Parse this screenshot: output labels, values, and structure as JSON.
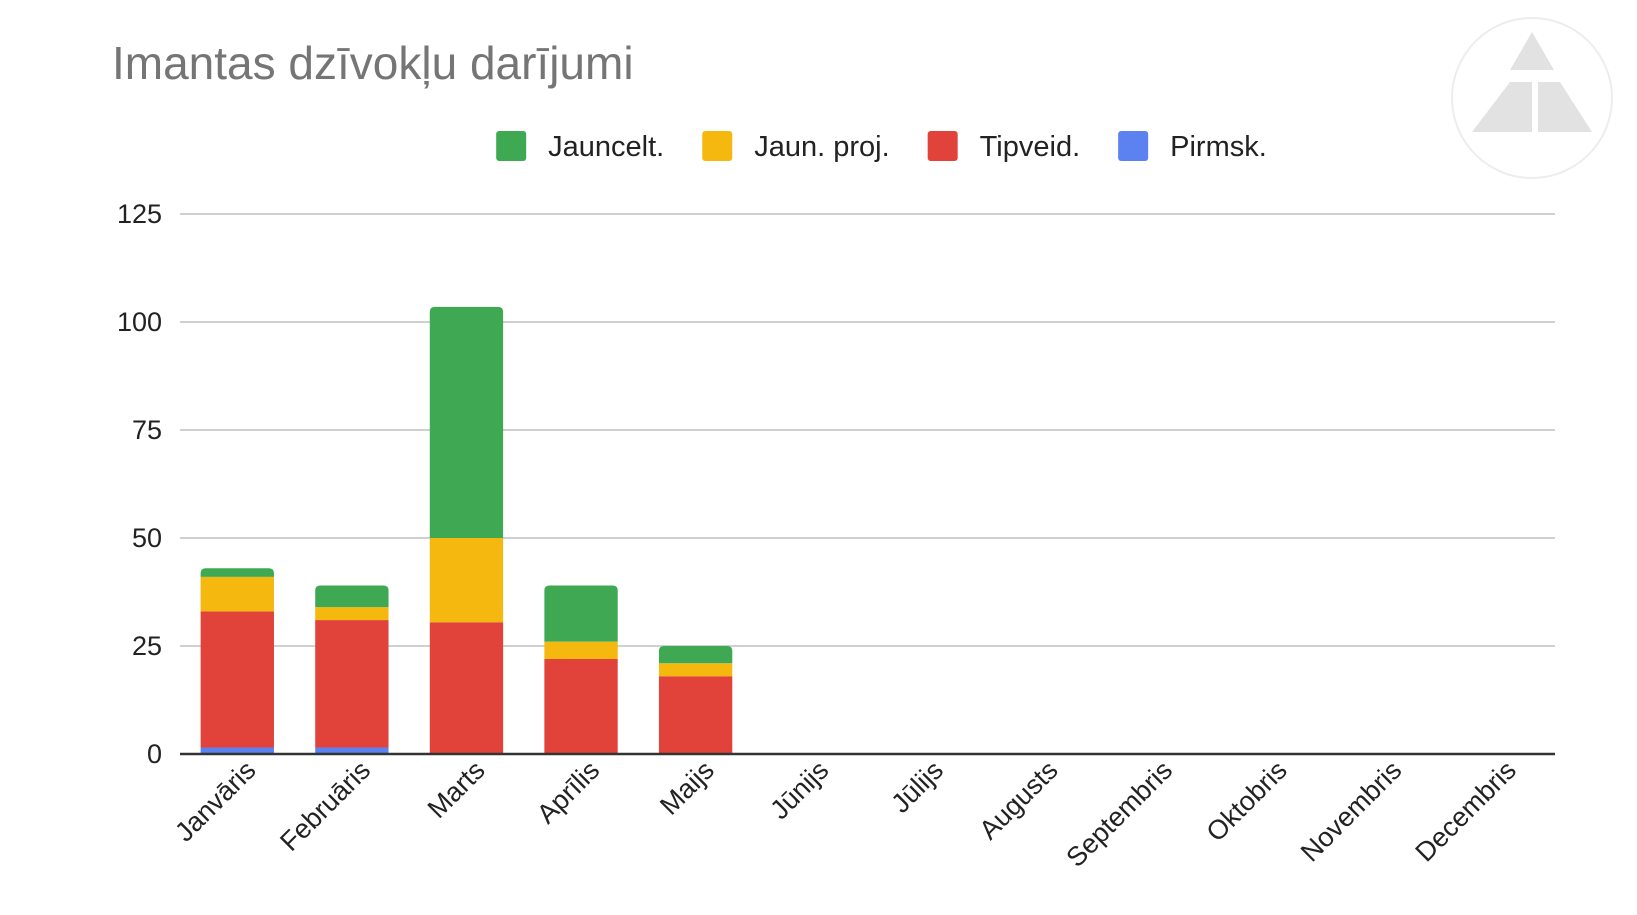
{
  "chart_data": {
    "type": "bar",
    "stacked": true,
    "title": "Imantas dzīvokļu darījumi",
    "xlabel": "",
    "ylabel": "",
    "ylim": [
      0,
      125
    ],
    "yticks": [
      0,
      25,
      50,
      75,
      100,
      125
    ],
    "grid": true,
    "legend_position": "top",
    "categories": [
      "Janvāris",
      "Februāris",
      "Marts",
      "Aprīlis",
      "Maijs",
      "Jūnijs",
      "Jūlijs",
      "Augusts",
      "Septembris",
      "Oktobris",
      "Novembris",
      "Decembris"
    ],
    "series": [
      {
        "name": "Pirmsk.",
        "color": "#5b82f0",
        "values": [
          1.5,
          1.5,
          0,
          0,
          0,
          0,
          0,
          0,
          0,
          0,
          0,
          0
        ]
      },
      {
        "name": "Tipveid.",
        "color": "#e1423a",
        "values": [
          31.5,
          29.5,
          30.5,
          22,
          18,
          0,
          0,
          0,
          0,
          0,
          0,
          0
        ]
      },
      {
        "name": "Jaun. proj.",
        "color": "#f4b80f",
        "values": [
          8,
          3,
          19.5,
          4,
          3,
          0,
          0,
          0,
          0,
          0,
          0,
          0
        ]
      },
      {
        "name": "Jauncelt.",
        "color": "#3ea852",
        "values": [
          2,
          5,
          53.5,
          13,
          4,
          0,
          0,
          0,
          0,
          0,
          0,
          0
        ]
      }
    ],
    "legend_order": [
      "Jauncelt.",
      "Jaun. proj.",
      "Tipveid.",
      "Pirmsk."
    ]
  },
  "colors": {
    "grid": "#d0d0d0",
    "axis": "#333333",
    "title": "#757575",
    "logo": "#e2e2e2"
  },
  "logo_icon": "triangle-logo-icon"
}
